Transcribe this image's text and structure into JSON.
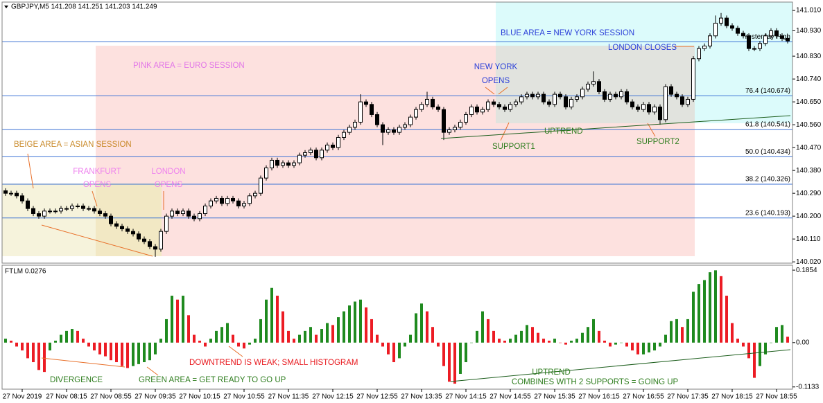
{
  "chart_data": [
    {
      "type": "candlestick",
      "title": "GBPJPY,M5  141.208 141.251 141.203 141.249",
      "open": [
        140.3,
        140.29,
        140.29,
        140.28,
        140.26,
        140.23,
        140.21,
        140.2,
        140.22,
        140.22,
        140.22,
        140.23,
        140.23,
        140.24,
        140.24,
        140.23,
        140.23,
        140.22,
        140.21,
        140.2,
        140.17,
        140.16,
        140.15,
        140.14,
        140.13,
        140.11,
        140.1,
        140.08,
        140.07,
        140.14,
        140.2,
        140.22,
        140.21,
        140.22,
        140.2,
        140.19,
        140.21,
        140.24,
        140.26,
        140.27,
        140.25,
        140.27,
        140.26,
        140.24,
        140.25,
        140.28,
        140.29,
        140.35,
        140.39,
        140.42,
        140.4,
        140.41,
        140.4,
        140.41,
        140.44,
        140.45,
        140.46,
        140.43,
        140.46,
        140.48,
        140.47,
        140.51,
        140.53,
        140.55,
        140.57,
        140.65,
        140.64,
        140.6,
        140.56,
        140.53,
        140.54,
        140.53,
        140.55,
        140.56,
        140.59,
        140.62,
        140.64,
        140.66,
        140.63,
        140.62,
        140.53,
        140.54,
        140.55,
        140.57,
        140.6,
        140.63,
        140.61,
        140.62,
        140.65,
        140.64,
        140.63,
        140.62,
        140.64,
        140.65,
        140.67,
        140.68,
        140.67,
        140.68,
        140.65,
        140.64,
        140.68,
        140.67,
        140.63,
        140.66,
        140.67,
        140.7,
        140.72,
        140.73,
        140.69,
        140.66,
        140.68,
        140.67,
        140.69,
        140.65,
        140.63,
        140.62,
        140.64,
        140.61,
        140.63,
        140.58,
        140.71,
        140.68,
        140.67,
        140.64,
        140.66,
        140.82,
        140.86,
        140.87,
        140.91,
        140.96,
        140.98,
        140.95,
        140.94,
        140.92,
        140.91,
        140.86,
        140.86,
        140.88,
        140.91,
        140.93,
        140.91,
        140.9
      ],
      "high": [
        140.31,
        140.3,
        140.3,
        140.29,
        140.27,
        140.24,
        140.22,
        140.23,
        140.23,
        140.23,
        140.24,
        140.24,
        140.25,
        140.25,
        140.25,
        140.24,
        140.24,
        140.23,
        140.22,
        140.21,
        140.18,
        140.17,
        140.16,
        140.15,
        140.14,
        140.12,
        140.11,
        140.09,
        140.15,
        140.21,
        140.23,
        140.23,
        140.23,
        140.23,
        140.21,
        140.22,
        140.25,
        140.27,
        140.28,
        140.28,
        140.28,
        140.28,
        140.27,
        140.26,
        140.29,
        140.3,
        140.36,
        140.4,
        140.43,
        140.43,
        140.42,
        140.42,
        140.42,
        140.45,
        140.46,
        140.47,
        140.47,
        140.47,
        140.49,
        140.49,
        140.52,
        140.54,
        140.56,
        140.58,
        140.68,
        140.66,
        140.65,
        140.61,
        140.57,
        140.55,
        140.55,
        140.56,
        140.57,
        140.6,
        140.63,
        140.65,
        140.69,
        140.67,
        140.64,
        140.63,
        140.55,
        140.56,
        140.58,
        140.61,
        140.64,
        140.64,
        140.63,
        140.66,
        140.66,
        140.65,
        140.64,
        140.65,
        140.66,
        140.68,
        140.69,
        140.69,
        140.69,
        140.69,
        140.66,
        140.69,
        140.69,
        140.68,
        140.67,
        140.68,
        140.71,
        140.73,
        140.77,
        140.74,
        140.7,
        140.69,
        140.69,
        140.7,
        140.7,
        140.66,
        140.64,
        140.65,
        140.65,
        140.64,
        140.64,
        140.72,
        140.72,
        140.69,
        140.68,
        140.67,
        140.83,
        140.87,
        140.88,
        140.92,
        140.99,
        141.0,
        140.99,
        140.96,
        140.95,
        140.93,
        140.92,
        140.87,
        140.89,
        140.92,
        140.94,
        140.94,
        140.92,
        140.91
      ],
      "low": [
        140.28,
        140.28,
        140.27,
        140.25,
        140.22,
        140.2,
        140.19,
        140.19,
        140.21,
        140.21,
        140.21,
        140.22,
        140.22,
        140.23,
        140.22,
        140.22,
        140.21,
        140.2,
        140.19,
        140.16,
        140.15,
        140.14,
        140.13,
        140.12,
        140.1,
        140.09,
        140.07,
        140.04,
        140.06,
        140.13,
        140.19,
        140.2,
        140.2,
        140.19,
        140.18,
        140.18,
        140.2,
        140.23,
        140.25,
        140.24,
        140.24,
        140.25,
        140.23,
        140.23,
        140.24,
        140.27,
        140.28,
        140.34,
        140.38,
        140.39,
        140.39,
        140.39,
        140.39,
        140.4,
        140.43,
        140.44,
        140.42,
        140.42,
        140.45,
        140.46,
        140.46,
        140.5,
        140.52,
        140.54,
        140.56,
        140.63,
        140.59,
        140.55,
        140.48,
        140.52,
        140.52,
        140.52,
        140.54,
        140.55,
        140.58,
        140.61,
        140.63,
        140.62,
        140.61,
        140.5,
        140.52,
        140.53,
        140.54,
        140.56,
        140.59,
        140.6,
        140.6,
        140.61,
        140.63,
        140.62,
        140.61,
        140.61,
        140.63,
        140.64,
        140.66,
        140.66,
        140.66,
        140.64,
        140.63,
        140.63,
        140.66,
        140.62,
        140.62,
        140.65,
        140.66,
        140.69,
        140.71,
        140.68,
        140.65,
        140.65,
        140.66,
        140.66,
        140.64,
        140.62,
        140.61,
        140.61,
        140.6,
        140.6,
        140.56,
        140.57,
        140.67,
        140.66,
        140.63,
        140.63,
        140.65,
        140.81,
        140.85,
        140.86,
        140.9,
        140.95,
        140.94,
        140.93,
        140.91,
        140.9,
        140.85,
        140.85,
        140.85,
        140.87,
        140.9,
        140.9,
        140.89,
        140.88
      ],
      "close": [
        140.29,
        140.29,
        140.28,
        140.26,
        140.23,
        140.21,
        140.2,
        140.22,
        140.22,
        140.22,
        140.23,
        140.23,
        140.24,
        140.24,
        140.23,
        140.23,
        140.22,
        140.21,
        140.2,
        140.17,
        140.16,
        140.15,
        140.14,
        140.13,
        140.11,
        140.1,
        140.08,
        140.07,
        140.14,
        140.2,
        140.22,
        140.21,
        140.22,
        140.2,
        140.19,
        140.21,
        140.24,
        140.26,
        140.27,
        140.25,
        140.27,
        140.26,
        140.24,
        140.25,
        140.28,
        140.29,
        140.35,
        140.39,
        140.42,
        140.4,
        140.41,
        140.4,
        140.41,
        140.44,
        140.45,
        140.46,
        140.43,
        140.46,
        140.48,
        140.47,
        140.51,
        140.53,
        140.55,
        140.57,
        140.65,
        140.64,
        140.6,
        140.56,
        140.53,
        140.54,
        140.53,
        140.55,
        140.56,
        140.59,
        140.62,
        140.64,
        140.66,
        140.63,
        140.62,
        140.53,
        140.54,
        140.55,
        140.57,
        140.6,
        140.63,
        140.61,
        140.62,
        140.65,
        140.64,
        140.63,
        140.62,
        140.64,
        140.65,
        140.67,
        140.68,
        140.67,
        140.68,
        140.65,
        140.64,
        140.68,
        140.67,
        140.63,
        140.66,
        140.67,
        140.7,
        140.72,
        140.73,
        140.69,
        140.66,
        140.68,
        140.67,
        140.69,
        140.65,
        140.63,
        140.62,
        140.64,
        140.61,
        140.63,
        140.58,
        140.71,
        140.68,
        140.67,
        140.64,
        140.66,
        140.82,
        140.86,
        140.87,
        140.91,
        140.96,
        140.98,
        140.95,
        140.94,
        140.92,
        140.91,
        140.86,
        140.86,
        140.88,
        140.91,
        140.93,
        140.91,
        140.9,
        140.89
      ],
      "up_color": "#ffffff",
      "down_color": "#000000",
      "ylim": [
        140.015,
        141.043
      ],
      "yticks": [
        {
          "value": 141.01,
          "label": "141.010"
        },
        {
          "value": 140.93,
          "label": "140.930"
        },
        {
          "value": 140.83,
          "label": "140.830"
        },
        {
          "value": 140.74,
          "label": "140.740"
        },
        {
          "value": 140.65,
          "label": "140.650"
        },
        {
          "value": 140.56,
          "label": "140.560"
        },
        {
          "value": 140.47,
          "label": "140.470"
        },
        {
          "value": 140.38,
          "label": "140.380"
        },
        {
          "value": 140.29,
          "label": "140.290"
        },
        {
          "value": 140.2,
          "label": "140.200"
        },
        {
          "value": 140.11,
          "label": "140.110"
        },
        {
          "value": 140.02,
          "label": "140.020"
        }
      ],
      "levels": [
        {
          "value": 140.887,
          "label": "Yesterday High"
        },
        {
          "value": 140.674,
          "label": "76.4 (140.674)"
        },
        {
          "value": 140.541,
          "label": "61.8 (140.541)"
        },
        {
          "value": 140.434,
          "label": "50.0 (140.434)"
        },
        {
          "value": 140.326,
          "label": "38.2 (140.326)"
        },
        {
          "value": 140.193,
          "label": "23.6 (140.193)"
        }
      ],
      "level_color": "#3b72d4",
      "annotations": [
        "BEIGE AREA = ASIAN SESSION",
        "PINK AREA = EURO SESSION",
        "BLUE AREA = NEW YORK SESSION",
        "FRANKFURT",
        "OPENS",
        "LONDON",
        "OPENS",
        "NEW YORK",
        "OPENS",
        "LONDON CLOSES",
        "UPTREND",
        "SUPPORT1",
        "SUPPORT2"
      ]
    },
    {
      "type": "histogram",
      "title": "FTLM 0.0276",
      "categories": [
        null,
        null,
        null,
        "27 Nov 2019",
        null,
        null,
        null,
        null,
        null,
        null,
        null,
        "27 Nov 08:15",
        null,
        null,
        null,
        null,
        null,
        null,
        null,
        "27 Nov 08:55",
        null,
        null,
        null,
        null,
        null,
        null,
        null,
        "27 Nov 09:35",
        null,
        null,
        null,
        null,
        null,
        null,
        null,
        "27 Nov 10:15",
        null,
        null,
        null,
        null,
        null,
        null,
        null,
        "27 Nov 10:55",
        null,
        null,
        null,
        null,
        null,
        null,
        null,
        "27 Nov 11:35",
        null,
        null,
        null,
        null,
        null,
        null,
        null,
        "27 Nov 12:15",
        null,
        null,
        null,
        null,
        null,
        null,
        null,
        "27 Nov 12:55",
        null,
        null,
        null,
        null,
        null,
        null,
        null,
        "27 Nov 13:35",
        null,
        null,
        null,
        null,
        null,
        null,
        null,
        "27 Nov 14:15",
        null,
        null,
        null,
        null,
        null,
        null,
        null,
        "27 Nov 14:55",
        null,
        null,
        null,
        null,
        null,
        null,
        null,
        "27 Nov 15:35",
        null,
        null,
        null,
        null,
        null,
        null,
        null,
        "27 Nov 16:15",
        null,
        null,
        null,
        null,
        null,
        null,
        null,
        "27 Nov 16:55",
        null,
        null,
        null,
        null,
        null,
        null,
        null,
        "27 Nov 17:35",
        null,
        null,
        null,
        null,
        null,
        null,
        null,
        "27 Nov 18:15",
        null,
        null,
        null,
        null,
        null,
        null,
        null,
        "27 Nov 18:55",
        null,
        null
      ],
      "values": [
        0.01,
        0.005,
        -0.01,
        -0.02,
        -0.04,
        -0.05,
        -0.07,
        -0.075,
        -0.02,
        0.005,
        0.02,
        0.03,
        0.035,
        0.03,
        0.01,
        -0.01,
        -0.02,
        -0.03,
        -0.035,
        -0.045,
        -0.05,
        -0.06,
        -0.065,
        -0.06,
        -0.055,
        -0.05,
        -0.045,
        -0.03,
        0.01,
        0.06,
        0.12,
        0.11,
        0.12,
        0.07,
        0.02,
        0.005,
        -0.01,
        0.01,
        0.03,
        0.04,
        0.05,
        0.02,
        -0.01,
        -0.015,
        -0.005,
        0.01,
        0.06,
        0.11,
        0.14,
        0.12,
        0.08,
        0.03,
        0.01,
        0.02,
        0.03,
        0.04,
        0.02,
        0.035,
        0.05,
        0.045,
        0.065,
        0.08,
        0.095,
        0.105,
        0.11,
        0.09,
        0.06,
        0.02,
        -0.01,
        -0.03,
        -0.05,
        -0.04,
        -0.01,
        0.02,
        0.075,
        0.1,
        0.08,
        0.04,
        -0.01,
        -0.06,
        -0.1,
        -0.105,
        -0.08,
        -0.05,
        0,
        0.03,
        0.08,
        0.06,
        0.03,
        0.01,
        0.005,
        0.01,
        0.02,
        0.03,
        0.045,
        0.04,
        0.025,
        0.01,
        0.005,
        0.01,
        0,
        -0.005,
        0.005,
        0.01,
        0.025,
        0.04,
        0.06,
        0.03,
        0.005,
        -0.01,
        -0.005,
        0,
        -0.01,
        -0.02,
        -0.03,
        -0.03,
        -0.025,
        -0.02,
        -0.01,
        0.02,
        0.055,
        0.06,
        0.04,
        0.06,
        0.13,
        0.15,
        0.16,
        0.18,
        0.185,
        0.17,
        0.12,
        0.05,
        0.01,
        -0.01,
        -0.04,
        -0.09,
        -0.06,
        -0.03,
        0,
        0.04,
        0.045,
        0.015
      ],
      "up_color": "#1f8a1f",
      "down_color": "#ec1c24",
      "ylim": [
        -0.119,
        0.198
      ],
      "yticks": [
        0.1854,
        {
          "value": 0,
          "label": "0.00"
        },
        -0.1133
      ],
      "annotations": [
        "DIVERGENCE",
        "GREEN AREA = GET READY TO GO UP",
        "DOWNTREND IS WEAK; SMALL HISTOGRAM",
        "UPTREND",
        "COMBINES WITH 2 SUPPORTS = GOING UP"
      ]
    }
  ]
}
